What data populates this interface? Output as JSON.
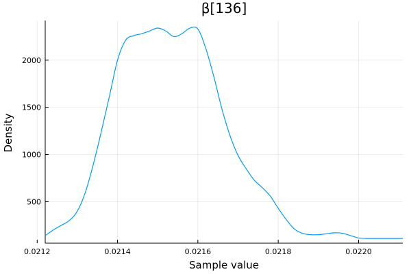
{
  "chart_data": {
    "type": "line",
    "title": "β[136]",
    "xlabel": "Sample value",
    "ylabel": "Density",
    "xlim": [
      0.02122,
      0.02211
    ],
    "ylim": [
      60,
      2420
    ],
    "x_ticks": [
      0.0212,
      0.0214,
      0.0216,
      0.0218,
      0.022
    ],
    "x_tick_labels": [
      "0.0212",
      "0.0214",
      "0.0216",
      "0.0218",
      "0.0220"
    ],
    "y_ticks": [
      500,
      1000,
      1500,
      2000
    ],
    "y_tick_labels": [
      "500",
      "1000",
      "1500",
      "2000"
    ],
    "grid": true,
    "legend": "none",
    "series": [
      {
        "color": "#009af9",
        "x": [
          0.02122,
          0.02124,
          0.02126,
          0.02128,
          0.0213,
          0.02132,
          0.02134,
          0.02136,
          0.02138,
          0.0214,
          0.02142,
          0.02144,
          0.02146,
          0.02148,
          0.0215,
          0.02152,
          0.02154,
          0.02156,
          0.02158,
          0.0216,
          0.02162,
          0.02164,
          0.02166,
          0.02168,
          0.0217,
          0.02172,
          0.02174,
          0.02176,
          0.02178,
          0.0218,
          0.02182,
          0.02184,
          0.02186,
          0.02188,
          0.0219,
          0.02192,
          0.02194,
          0.02196,
          0.02198,
          0.022,
          0.02202,
          0.02204,
          0.02206,
          0.02208,
          0.0221,
          0.02211
        ],
        "y": [
          140,
          200,
          250,
          300,
          400,
          600,
          900,
          1250,
          1620,
          2000,
          2210,
          2260,
          2280,
          2310,
          2340,
          2310,
          2250,
          2280,
          2340,
          2330,
          2120,
          1820,
          1480,
          1200,
          990,
          850,
          730,
          650,
          560,
          430,
          310,
          210,
          165,
          150,
          150,
          160,
          170,
          165,
          140,
          115,
          110,
          110,
          110,
          110,
          110,
          110
        ]
      }
    ]
  }
}
